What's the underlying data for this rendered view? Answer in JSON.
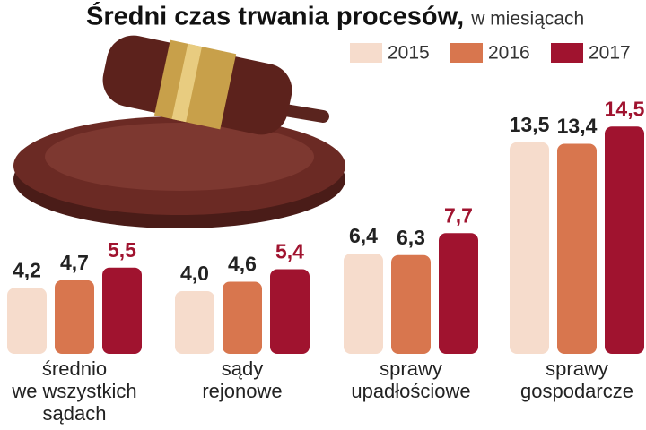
{
  "chart_data": {
    "type": "bar",
    "title": "Średni czas trwania procesów,",
    "subtitle": "w miesiącach",
    "categories": [
      [
        "średnio",
        "we wszystkich",
        "sądach"
      ],
      [
        "sądy",
        "rejonowe"
      ],
      [
        "sprawy",
        "upadłościowe"
      ],
      [
        "sprawy",
        "gospodarcze"
      ]
    ],
    "series": [
      {
        "name": "2015",
        "color": "#f6dccc",
        "values": [
          4.2,
          4.0,
          6.4,
          13.5
        ],
        "value_labels": [
          "4,2",
          "4,0",
          "6,4",
          "13,5"
        ]
      },
      {
        "name": "2016",
        "color": "#d8764e",
        "values": [
          4.7,
          4.6,
          6.3,
          13.4
        ],
        "value_labels": [
          "4,7",
          "4,6",
          "6,3",
          "13,4"
        ]
      },
      {
        "name": "2017",
        "color": "#a0132f",
        "values": [
          5.5,
          5.4,
          7.7,
          14.5
        ],
        "value_labels": [
          "5,5",
          "5,4",
          "7,7",
          "14,5"
        ]
      }
    ]
  }
}
